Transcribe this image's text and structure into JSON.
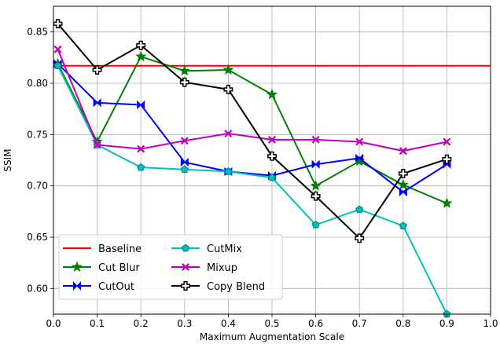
{
  "chart_data": {
    "type": "line",
    "title": "",
    "xlabel": "Maximum Augmentation Scale",
    "ylabel": "SSIM",
    "xlim": [
      0.0,
      1.0
    ],
    "ylim": [
      0.575,
      0.875
    ],
    "xticks": [
      "0.0",
      "0.1",
      "0.2",
      "0.3",
      "0.4",
      "0.5",
      "0.6",
      "0.7",
      "0.8",
      "0.9",
      "1.0"
    ],
    "yticks": [
      "0.60",
      "0.65",
      "0.70",
      "0.75",
      "0.80",
      "0.85"
    ],
    "grid": true,
    "legend_position": "lower-left",
    "legend_columns": 2,
    "series": [
      {
        "name": "Baseline",
        "color": "#ff0000",
        "marker": "none",
        "x": [
          0.0,
          1.0
        ],
        "values": [
          0.817,
          0.817
        ]
      },
      {
        "name": "Cut Blur",
        "color": "#008000",
        "marker": "star",
        "x": [
          0.01,
          0.1,
          0.2,
          0.3,
          0.4,
          0.5,
          0.6,
          0.7,
          0.8,
          0.9
        ],
        "values": [
          0.819,
          0.743,
          0.826,
          0.812,
          0.813,
          0.789,
          0.7,
          0.724,
          0.701,
          0.683
        ]
      },
      {
        "name": "CutOut",
        "color": "#0000ff",
        "marker": "bowtie",
        "x": [
          0.01,
          0.1,
          0.2,
          0.3,
          0.4,
          0.5,
          0.6,
          0.7,
          0.8,
          0.9
        ],
        "values": [
          0.819,
          0.781,
          0.779,
          0.723,
          0.714,
          0.71,
          0.721,
          0.727,
          0.694,
          0.721
        ]
      },
      {
        "name": "CutMix",
        "color": "#00bfbf",
        "marker": "pentagon",
        "x": [
          0.01,
          0.1,
          0.2,
          0.3,
          0.4,
          0.5,
          0.6,
          0.7,
          0.8,
          0.9
        ],
        "values": [
          0.817,
          0.74,
          0.718,
          0.716,
          0.714,
          0.708,
          0.662,
          0.677,
          0.661,
          0.575
        ]
      },
      {
        "name": "Mixup",
        "color": "#bf00bf",
        "marker": "x",
        "x": [
          0.01,
          0.1,
          0.2,
          0.3,
          0.4,
          0.5,
          0.6,
          0.7,
          0.8,
          0.9
        ],
        "values": [
          0.833,
          0.74,
          0.736,
          0.744,
          0.751,
          0.745,
          0.745,
          0.743,
          0.734,
          0.743
        ]
      },
      {
        "name": "Copy Blend",
        "color": "#000000",
        "marker": "plus",
        "x": [
          0.01,
          0.1,
          0.2,
          0.3,
          0.4,
          0.5,
          0.6,
          0.7,
          0.8,
          0.9
        ],
        "values": [
          0.858,
          0.813,
          0.837,
          0.801,
          0.794,
          0.729,
          0.69,
          0.649,
          0.712,
          0.726
        ]
      }
    ]
  }
}
